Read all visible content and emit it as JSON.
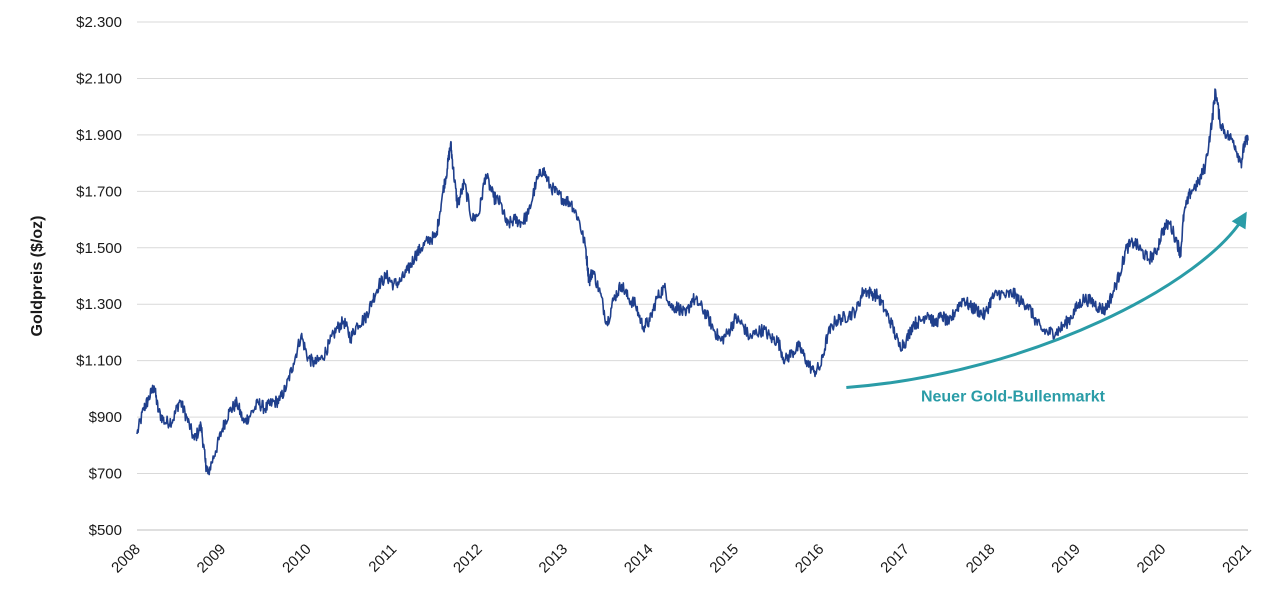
{
  "chart_data": {
    "type": "line",
    "title": "",
    "xlabel": "",
    "ylabel": "Goldpreis ($/oz)",
    "xlim": [
      2008,
      2021
    ],
    "ylim": [
      500,
      2300
    ],
    "grid": true,
    "x_ticks": [
      "2008",
      "2009",
      "2010",
      "2011",
      "2012",
      "2013",
      "2014",
      "2015",
      "2016",
      "2017",
      "2018",
      "2019",
      "2020",
      "2021"
    ],
    "y_ticks": [
      {
        "value": 500,
        "label": "$500"
      },
      {
        "value": 700,
        "label": "$700"
      },
      {
        "value": 900,
        "label": "$900"
      },
      {
        "value": 1100,
        "label": "$1.100"
      },
      {
        "value": 1300,
        "label": "$1.300"
      },
      {
        "value": 1500,
        "label": "$1.500"
      },
      {
        "value": 1700,
        "label": "$1.700"
      },
      {
        "value": 1900,
        "label": "$1.900"
      },
      {
        "value": 2100,
        "label": "$2.100"
      },
      {
        "value": 2300,
        "label": "$2.300"
      }
    ],
    "series": [
      {
        "color": "#1f3f8c",
        "points": [
          [
            2008.0,
            840
          ],
          [
            2008.08,
            930
          ],
          [
            2008.13,
            960
          ],
          [
            2008.2,
            1010
          ],
          [
            2008.25,
            920
          ],
          [
            2008.33,
            880
          ],
          [
            2008.42,
            890
          ],
          [
            2008.5,
            960
          ],
          [
            2008.58,
            900
          ],
          [
            2008.67,
            820
          ],
          [
            2008.75,
            870
          ],
          [
            2008.8,
            740
          ],
          [
            2008.83,
            700
          ],
          [
            2008.92,
            780
          ],
          [
            2009.0,
            860
          ],
          [
            2009.08,
            920
          ],
          [
            2009.17,
            950
          ],
          [
            2009.25,
            880
          ],
          [
            2009.33,
            910
          ],
          [
            2009.42,
            950
          ],
          [
            2009.5,
            930
          ],
          [
            2009.58,
            950
          ],
          [
            2009.67,
            960
          ],
          [
            2009.75,
            1010
          ],
          [
            2009.83,
            1090
          ],
          [
            2009.92,
            1190
          ],
          [
            2010.0,
            1110
          ],
          [
            2010.08,
            1090
          ],
          [
            2010.17,
            1110
          ],
          [
            2010.25,
            1160
          ],
          [
            2010.33,
            1210
          ],
          [
            2010.42,
            1240
          ],
          [
            2010.5,
            1180
          ],
          [
            2010.58,
            1230
          ],
          [
            2010.67,
            1250
          ],
          [
            2010.75,
            1310
          ],
          [
            2010.83,
            1370
          ],
          [
            2010.92,
            1400
          ],
          [
            2011.0,
            1370
          ],
          [
            2011.08,
            1380
          ],
          [
            2011.17,
            1420
          ],
          [
            2011.25,
            1470
          ],
          [
            2011.33,
            1500
          ],
          [
            2011.42,
            1530
          ],
          [
            2011.5,
            1540
          ],
          [
            2011.58,
            1700
          ],
          [
            2011.63,
            1780
          ],
          [
            2011.67,
            1870
          ],
          [
            2011.7,
            1780
          ],
          [
            2011.75,
            1650
          ],
          [
            2011.83,
            1730
          ],
          [
            2011.92,
            1600
          ],
          [
            2012.0,
            1620
          ],
          [
            2012.08,
            1760
          ],
          [
            2012.17,
            1680
          ],
          [
            2012.25,
            1660
          ],
          [
            2012.33,
            1580
          ],
          [
            2012.42,
            1600
          ],
          [
            2012.5,
            1590
          ],
          [
            2012.58,
            1620
          ],
          [
            2012.67,
            1730
          ],
          [
            2012.75,
            1780
          ],
          [
            2012.83,
            1720
          ],
          [
            2012.92,
            1690
          ],
          [
            2013.0,
            1670
          ],
          [
            2013.08,
            1660
          ],
          [
            2013.17,
            1600
          ],
          [
            2013.25,
            1500
          ],
          [
            2013.29,
            1380
          ],
          [
            2013.33,
            1420
          ],
          [
            2013.42,
            1340
          ],
          [
            2013.5,
            1230
          ],
          [
            2013.58,
            1320
          ],
          [
            2013.67,
            1370
          ],
          [
            2013.75,
            1320
          ],
          [
            2013.83,
            1300
          ],
          [
            2013.92,
            1220
          ],
          [
            2014.0,
            1240
          ],
          [
            2014.08,
            1320
          ],
          [
            2014.17,
            1360
          ],
          [
            2014.25,
            1290
          ],
          [
            2014.33,
            1290
          ],
          [
            2014.42,
            1260
          ],
          [
            2014.5,
            1320
          ],
          [
            2014.58,
            1300
          ],
          [
            2014.67,
            1260
          ],
          [
            2014.75,
            1210
          ],
          [
            2014.83,
            1170
          ],
          [
            2014.92,
            1200
          ],
          [
            2015.0,
            1250
          ],
          [
            2015.08,
            1230
          ],
          [
            2015.17,
            1180
          ],
          [
            2015.25,
            1200
          ],
          [
            2015.33,
            1210
          ],
          [
            2015.42,
            1180
          ],
          [
            2015.5,
            1170
          ],
          [
            2015.58,
            1100
          ],
          [
            2015.67,
            1130
          ],
          [
            2015.75,
            1150
          ],
          [
            2015.83,
            1100
          ],
          [
            2015.92,
            1060
          ],
          [
            2016.0,
            1080
          ],
          [
            2016.08,
            1190
          ],
          [
            2016.17,
            1240
          ],
          [
            2016.25,
            1250
          ],
          [
            2016.33,
            1260
          ],
          [
            2016.42,
            1280
          ],
          [
            2016.5,
            1350
          ],
          [
            2016.58,
            1340
          ],
          [
            2016.67,
            1330
          ],
          [
            2016.75,
            1280
          ],
          [
            2016.83,
            1230
          ],
          [
            2016.92,
            1150
          ],
          [
            2017.0,
            1170
          ],
          [
            2017.08,
            1230
          ],
          [
            2017.17,
            1240
          ],
          [
            2017.25,
            1270
          ],
          [
            2017.33,
            1230
          ],
          [
            2017.42,
            1260
          ],
          [
            2017.5,
            1230
          ],
          [
            2017.58,
            1280
          ],
          [
            2017.67,
            1320
          ],
          [
            2017.75,
            1290
          ],
          [
            2017.83,
            1280
          ],
          [
            2017.92,
            1260
          ],
          [
            2018.0,
            1320
          ],
          [
            2018.08,
            1340
          ],
          [
            2018.17,
            1330
          ],
          [
            2018.25,
            1340
          ],
          [
            2018.33,
            1310
          ],
          [
            2018.42,
            1300
          ],
          [
            2018.5,
            1250
          ],
          [
            2018.58,
            1210
          ],
          [
            2018.67,
            1200
          ],
          [
            2018.75,
            1200
          ],
          [
            2018.83,
            1220
          ],
          [
            2018.92,
            1250
          ],
          [
            2019.0,
            1290
          ],
          [
            2019.08,
            1320
          ],
          [
            2019.17,
            1310
          ],
          [
            2019.25,
            1290
          ],
          [
            2019.33,
            1280
          ],
          [
            2019.42,
            1340
          ],
          [
            2019.5,
            1410
          ],
          [
            2019.58,
            1500
          ],
          [
            2019.67,
            1520
          ],
          [
            2019.75,
            1490
          ],
          [
            2019.83,
            1460
          ],
          [
            2019.92,
            1480
          ],
          [
            2020.0,
            1560
          ],
          [
            2020.08,
            1590
          ],
          [
            2020.17,
            1520
          ],
          [
            2020.21,
            1480
          ],
          [
            2020.25,
            1620
          ],
          [
            2020.33,
            1700
          ],
          [
            2020.42,
            1730
          ],
          [
            2020.5,
            1790
          ],
          [
            2020.58,
            1950
          ],
          [
            2020.62,
            2060
          ],
          [
            2020.67,
            1950
          ],
          [
            2020.75,
            1900
          ],
          [
            2020.83,
            1880
          ],
          [
            2020.92,
            1800
          ],
          [
            2020.96,
            1870
          ],
          [
            2021.0,
            1880
          ]
        ]
      }
    ],
    "annotations": [
      {
        "text": "Neuer Gold-Bullenmarkt",
        "color": "#2a9ca7",
        "text_pos": [
          2018.25,
          955
        ],
        "arrow": [
          [
            2016.3,
            1005
          ],
          [
            2018.5,
            1055
          ],
          [
            2020.5,
            1380
          ],
          [
            2020.95,
            1610
          ]
        ]
      }
    ]
  }
}
